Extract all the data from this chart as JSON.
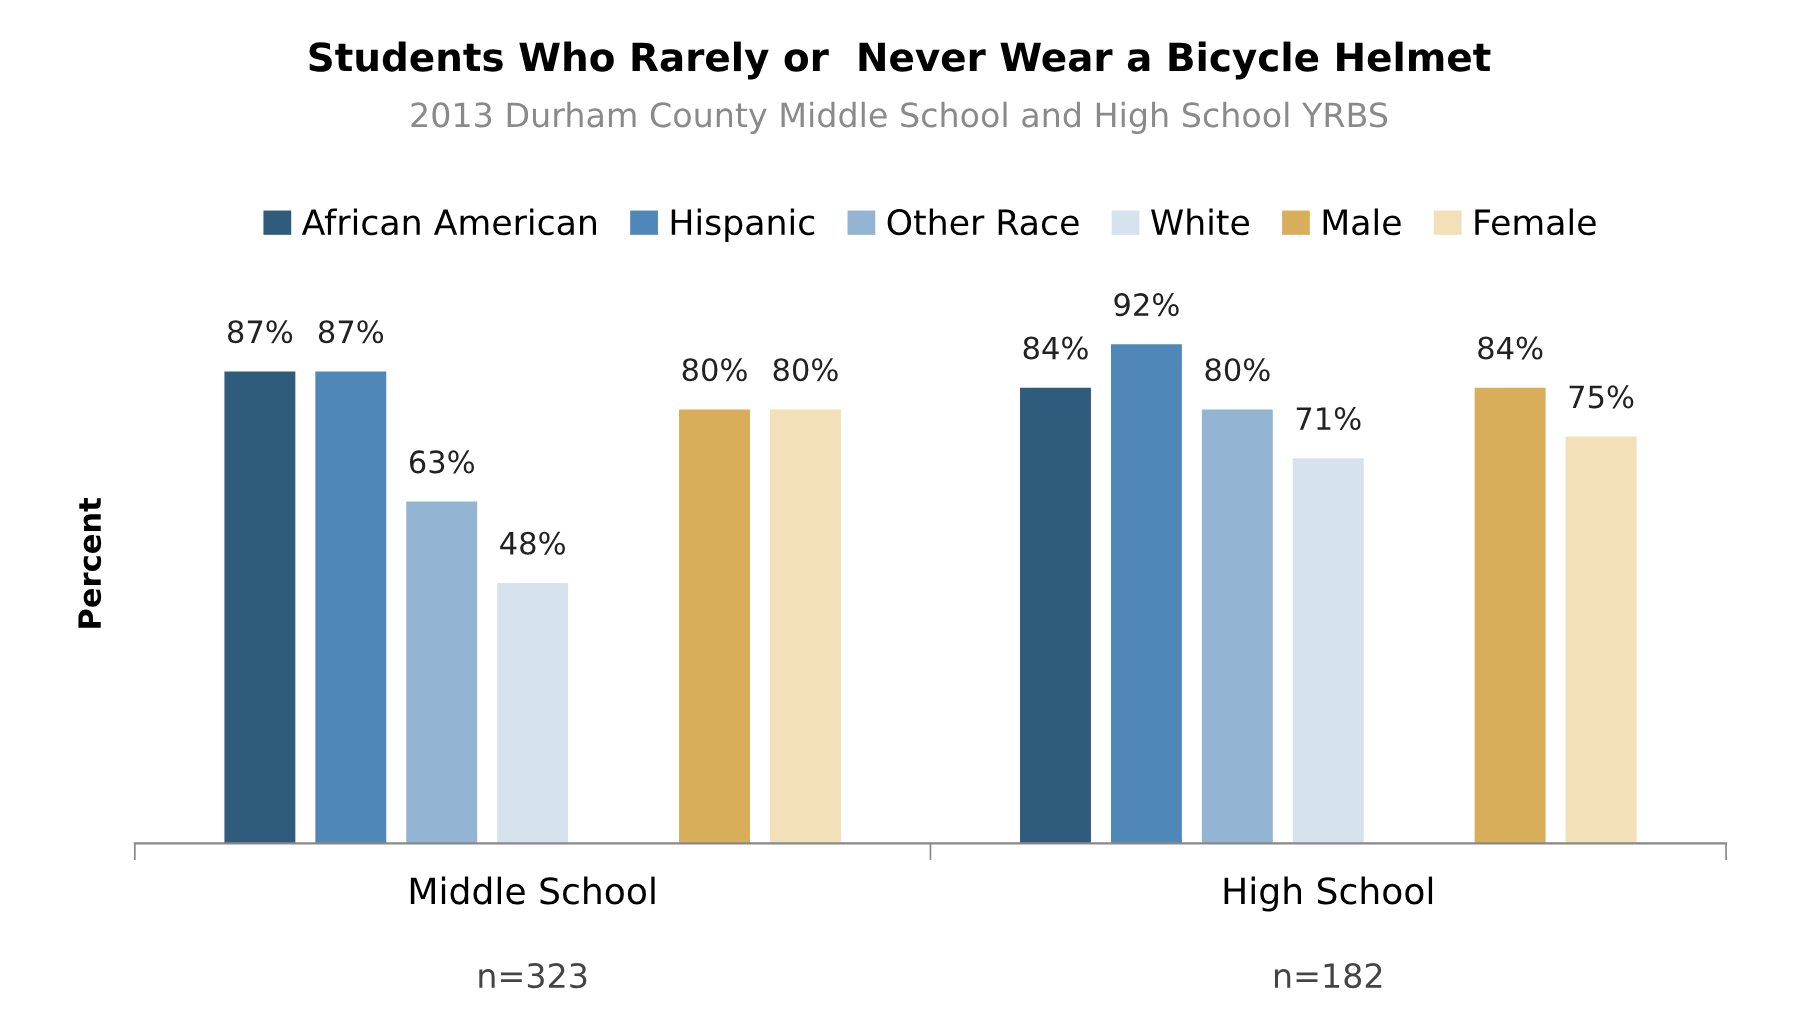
{
  "chart_data": {
    "type": "bar",
    "title": "Students Who Rarely or  Never Wear a Bicycle Helmet",
    "subtitle": "2013 Durham County Middle School and High School YRBS",
    "ylabel": "Percent",
    "categories": [
      "Middle School",
      "High School"
    ],
    "series": [
      {
        "name": "African American",
        "color": "#2f5b7c",
        "values": [
          87,
          84
        ],
        "value_labels": [
          "87%",
          "84%"
        ]
      },
      {
        "name": "Hispanic",
        "color": "#4f88b8",
        "values": [
          87,
          92
        ],
        "value_labels": [
          "87%",
          "92%"
        ]
      },
      {
        "name": "Other Race",
        "color": "#93b5d3",
        "values": [
          63,
          80
        ],
        "value_labels": [
          "63%",
          "80%"
        ]
      },
      {
        "name": "White",
        "color": "#d6e3ee",
        "values": [
          48,
          71
        ],
        "value_labels": [
          "48%",
          "71%"
        ]
      },
      {
        "name": "Male",
        "color": "#d8ae5b",
        "values": [
          80,
          84
        ],
        "value_labels": [
          "80%",
          "84%"
        ]
      },
      {
        "name": "Female",
        "color": "#f1e0b8",
        "values": [
          80,
          75
        ],
        "value_labels": [
          "80%",
          "75%"
        ]
      }
    ],
    "annotations": [
      "n=323",
      "n=182"
    ],
    "legend": "top",
    "grid": false
  }
}
